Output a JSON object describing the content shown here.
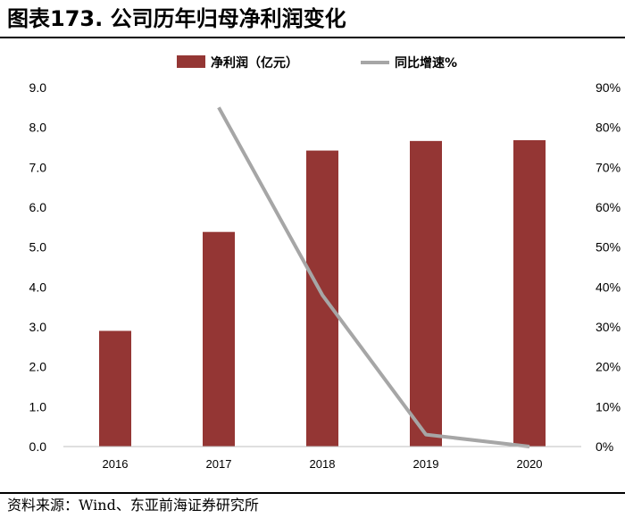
{
  "page": {
    "title": "图表173. 公司历年归母净利润变化",
    "source": "资料来源：Wind、东亚前海证券研究所"
  },
  "chart_data": {
    "type": "bar",
    "categories": [
      "2016",
      "2017",
      "2018",
      "2019",
      "2020"
    ],
    "series": [
      {
        "name": "净利润（亿元）",
        "type": "bar",
        "axis": "left",
        "color": "#943634",
        "values": [
          2.9,
          5.38,
          7.42,
          7.66,
          7.68
        ]
      },
      {
        "name": "同比增速%",
        "type": "line",
        "axis": "right",
        "color": "#A6A6A6",
        "values": [
          null,
          85,
          38,
          3,
          0
        ]
      }
    ],
    "y_left": {
      "min": 0,
      "max": 9,
      "ticks": [
        "0.0",
        "1.0",
        "2.0",
        "3.0",
        "4.0",
        "5.0",
        "6.0",
        "7.0",
        "8.0",
        "9.0"
      ]
    },
    "y_right": {
      "min": 0,
      "max": 90,
      "ticks": [
        "0%",
        "10%",
        "20%",
        "30%",
        "40%",
        "50%",
        "60%",
        "70%",
        "80%",
        "90%"
      ]
    },
    "legend_position": "top",
    "grid": false
  }
}
